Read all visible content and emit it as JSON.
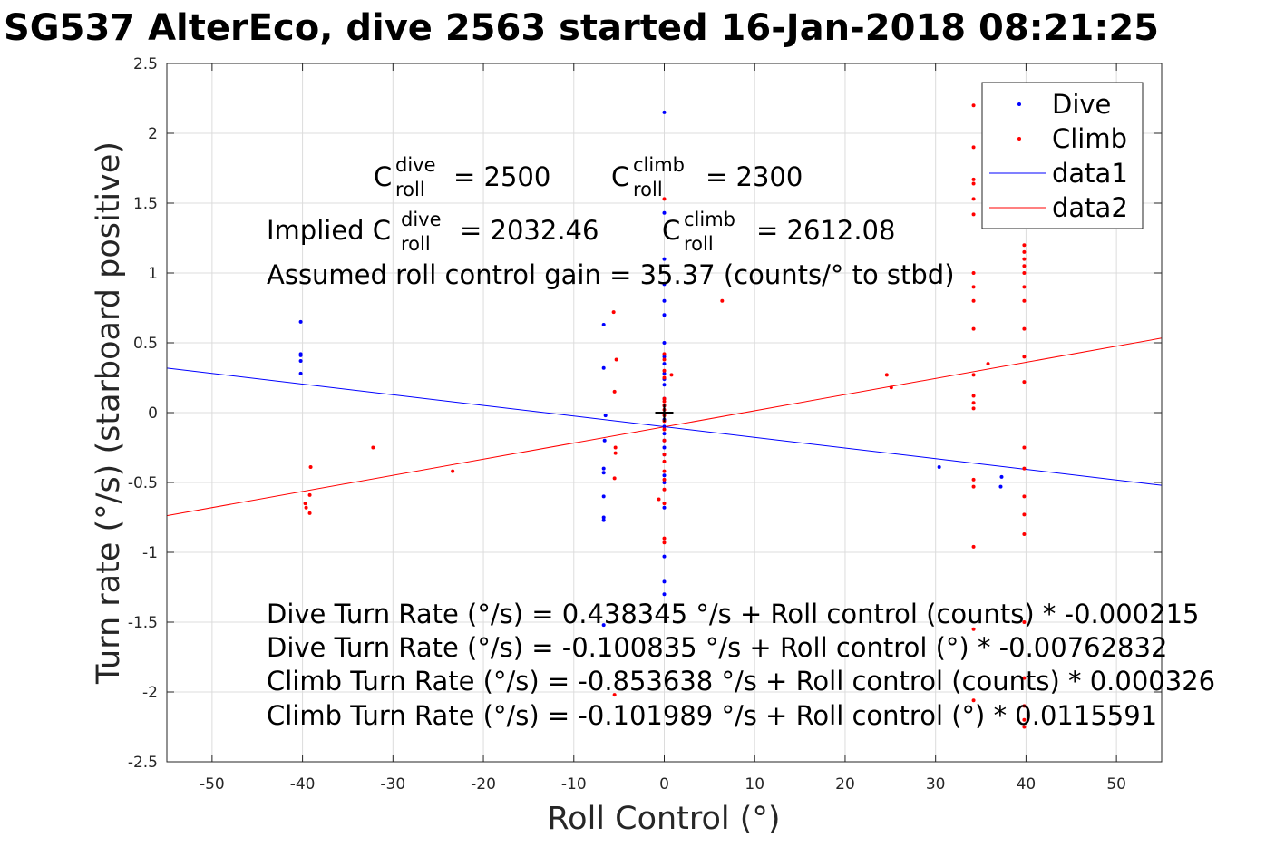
{
  "chart_data": {
    "type": "scatter",
    "title": "SG537 AlterEco, dive 2563 started 16-Jan-2018 08:21:25",
    "xlabel": "Roll Control (°)",
    "ylabel": "Turn rate (°/s) (starboard positive)",
    "xlim": [
      -55,
      55
    ],
    "ylim": [
      -2.5,
      2.5
    ],
    "x_ticks": [
      "-50",
      "-40",
      "-30",
      "-20",
      "-10",
      "0",
      "10",
      "20",
      "30",
      "40",
      "50"
    ],
    "x_tick_values": [
      -50,
      -40,
      -30,
      -20,
      -10,
      0,
      10,
      20,
      30,
      40,
      50
    ],
    "y_ticks": [
      "2.5",
      "2",
      "1.5",
      "1",
      "0.5",
      "0",
      "-0.5",
      "-1",
      "-1.5",
      "-2",
      "-2.5"
    ],
    "y_tick_values": [
      2.5,
      2,
      1.5,
      1,
      0.5,
      0,
      -0.5,
      -1,
      -1.5,
      -2,
      -2.5
    ],
    "grid": true,
    "legend_position": "top-right",
    "legend": [
      "Dive",
      "Climb",
      "data1",
      "data2"
    ],
    "colors": {
      "dive": "#0000ff",
      "climb": "#ff0000",
      "marker": "#000000"
    },
    "series": [
      {
        "name": "Dive",
        "kind": "points",
        "color": "#0000ff",
        "points": [
          [
            -40.2,
            0.65
          ],
          [
            -40.2,
            0.42
          ],
          [
            -40.2,
            0.41
          ],
          [
            -40.2,
            0.37
          ],
          [
            -40.2,
            0.28
          ],
          [
            -6.7,
            0.63
          ],
          [
            -6.7,
            0.32
          ],
          [
            -6.5,
            -0.02
          ],
          [
            -6.6,
            -0.2
          ],
          [
            -6.7,
            -0.4
          ],
          [
            -6.7,
            -0.43
          ],
          [
            -6.7,
            -0.6
          ],
          [
            -6.7,
            -0.75
          ],
          [
            -6.7,
            -0.77
          ],
          [
            -6.7,
            -1.52
          ],
          [
            0,
            2.15
          ],
          [
            0,
            1.43
          ],
          [
            0,
            1.1
          ],
          [
            0,
            0.92
          ],
          [
            0,
            0.8
          ],
          [
            0,
            0.7
          ],
          [
            0,
            0.5
          ],
          [
            0,
            0.4
          ],
          [
            0,
            0.35
          ],
          [
            0,
            0.28
          ],
          [
            0,
            0.24
          ],
          [
            0,
            0.2
          ],
          [
            0,
            0.1
          ],
          [
            0,
            0.05
          ],
          [
            0,
            -0.05
          ],
          [
            0,
            -0.1
          ],
          [
            0,
            -0.15
          ],
          [
            0,
            -0.2
          ],
          [
            0,
            -0.25
          ],
          [
            0,
            -0.3
          ],
          [
            0,
            -0.45
          ],
          [
            0,
            -0.5
          ],
          [
            0,
            -0.68
          ],
          [
            0,
            -1.03
          ],
          [
            0,
            -1.21
          ],
          [
            0,
            -1.3
          ],
          [
            30.4,
            -0.39
          ],
          [
            37.3,
            -0.46
          ],
          [
            37.2,
            -0.53
          ]
        ]
      },
      {
        "name": "Climb",
        "kind": "points",
        "color": "#ff0000",
        "points": [
          [
            -39.7,
            -0.65
          ],
          [
            -39.6,
            -0.68
          ],
          [
            -39.2,
            -0.59
          ],
          [
            -39.2,
            -0.72
          ],
          [
            -39.1,
            -0.39
          ],
          [
            -32.2,
            -0.25
          ],
          [
            -23.4,
            -0.42
          ],
          [
            -5.6,
            0.72
          ],
          [
            -5.3,
            0.38
          ],
          [
            -5.5,
            0.15
          ],
          [
            -5.4,
            -0.25
          ],
          [
            -5.4,
            -0.29
          ],
          [
            -5.5,
            -0.47
          ],
          [
            -5.5,
            -2.02
          ],
          [
            0,
            1.53
          ],
          [
            0,
            0.42
          ],
          [
            0,
            0.38
          ],
          [
            0,
            0.3
          ],
          [
            0,
            0.25
          ],
          [
            0.8,
            0.27
          ],
          [
            0,
            0.1
          ],
          [
            0,
            0.08
          ],
          [
            0,
            0.05
          ],
          [
            0,
            0.02
          ],
          [
            0,
            -0.02
          ],
          [
            0,
            -0.06
          ],
          [
            0,
            -0.12
          ],
          [
            0,
            -0.2
          ],
          [
            0,
            -0.3
          ],
          [
            0,
            -0.35
          ],
          [
            0,
            -0.42
          ],
          [
            0,
            -0.48
          ],
          [
            0,
            -0.55
          ],
          [
            -0.6,
            -0.62
          ],
          [
            0,
            -0.65
          ],
          [
            0,
            -0.9
          ],
          [
            0,
            -0.93
          ],
          [
            6.4,
            0.8
          ],
          [
            24.6,
            0.27
          ],
          [
            25.1,
            0.18
          ],
          [
            35.8,
            0.35
          ],
          [
            34.2,
            2.2
          ],
          [
            34.2,
            1.9
          ],
          [
            34.2,
            1.67
          ],
          [
            34.2,
            1.64
          ],
          [
            34.2,
            1.53
          ],
          [
            34.2,
            1.42
          ],
          [
            34.2,
            1.0
          ],
          [
            34.2,
            0.9
          ],
          [
            34.2,
            0.8
          ],
          [
            34.2,
            0.6
          ],
          [
            34.2,
            0.27
          ],
          [
            34.2,
            0.12
          ],
          [
            34.2,
            0.07
          ],
          [
            34.2,
            0.03
          ],
          [
            34.2,
            -0.48
          ],
          [
            34.2,
            -0.53
          ],
          [
            34.2,
            -0.96
          ],
          [
            34.2,
            -1.55
          ],
          [
            34.2,
            -2.06
          ],
          [
            39.8,
            2.2
          ],
          [
            39.8,
            1.9
          ],
          [
            39.8,
            1.2
          ],
          [
            39.8,
            1.15
          ],
          [
            39.8,
            1.1
          ],
          [
            39.8,
            1.05
          ],
          [
            39.8,
            1.0
          ],
          [
            39.8,
            0.9
          ],
          [
            39.8,
            0.8
          ],
          [
            39.8,
            0.6
          ],
          [
            39.8,
            0.4
          ],
          [
            39.8,
            0.22
          ],
          [
            39.8,
            -0.25
          ],
          [
            39.8,
            -0.4
          ],
          [
            39.8,
            -0.6
          ],
          [
            39.8,
            -0.73
          ],
          [
            39.8,
            -0.87
          ],
          [
            39.8,
            -1.5
          ],
          [
            39.8,
            -1.9
          ],
          [
            39.8,
            -2.1
          ],
          [
            39.8,
            -2.2
          ],
          [
            39.8,
            -2.25
          ]
        ]
      },
      {
        "name": "data1",
        "kind": "line",
        "color": "#0000ff",
        "slope": -0.00762832,
        "intercept": -0.100835
      },
      {
        "name": "data2",
        "kind": "line",
        "color": "#ff0000",
        "slope": 0.0115591,
        "intercept": -0.101989
      },
      {
        "name": "",
        "kind": "crosshair",
        "color": "#000000",
        "points": [
          [
            0,
            0
          ]
        ]
      }
    ],
    "annotations": {
      "c_roll_dive": {
        "sym": "C",
        "sup": "dive",
        "sub": "roll",
        "value": "= 2500"
      },
      "c_roll_climb": {
        "sym": "C",
        "sup": "climb",
        "sub": "roll",
        "value": "= 2300"
      },
      "implied_prefix": "Implied C",
      "implied_dive": {
        "sup": "dive",
        "sub": "roll",
        "value": "= 2032.46"
      },
      "implied_climb": {
        "sym": "C",
        "sup": "climb",
        "sub": "roll",
        "value": "= 2612.08"
      },
      "gain": "Assumed roll control gain = 35.37 (counts/° to stbd)",
      "eq1": "Dive Turn Rate (°/s) = 0.438345 °/s + Roll control (counts) * -0.000215",
      "eq2": "Dive Turn Rate (°/s) = -0.100835 °/s + Roll control (°) * -0.00762832",
      "eq3": "Climb Turn Rate (°/s) = -0.853638 °/s + Roll control (counts) * 0.000326",
      "eq4": "Climb Turn Rate (°/s) = -0.101989 °/s + Roll control (°) * 0.0115591"
    }
  }
}
